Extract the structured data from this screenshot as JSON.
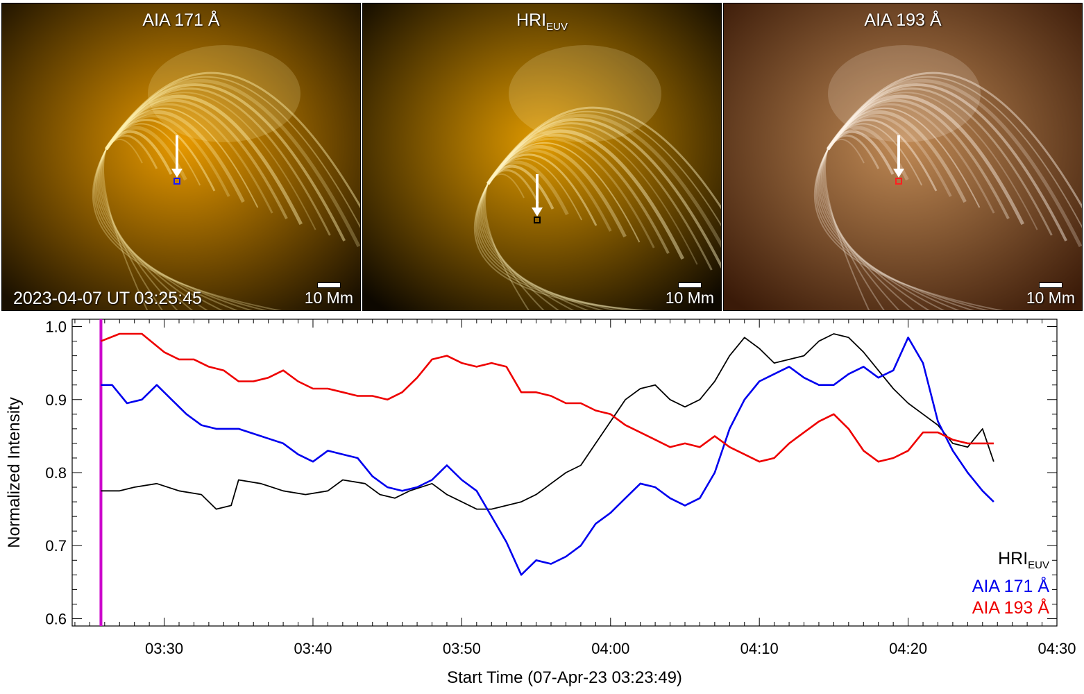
{
  "panels": [
    {
      "title": "AIA 171 Å",
      "scale_label": "10 Mm",
      "timestamp": "2023-04-07 UT 03:25:45",
      "box_color": "#1a1aff",
      "palette": [
        "#1a1000",
        "#e89a00",
        "#fff2b0"
      ]
    },
    {
      "title": "HRI",
      "title_sub": "EUV",
      "scale_label": "10 Mm",
      "box_color": "#000000",
      "palette": [
        "#0d0800",
        "#e09a00",
        "#fff4c0"
      ]
    },
    {
      "title": "AIA 193 Å",
      "scale_label": "10 Mm",
      "box_color": "#ff2020",
      "palette": [
        "#3a1a08",
        "#c08a55",
        "#fff5e8"
      ]
    }
  ],
  "legend": [
    {
      "label": "HRI",
      "sub": "EUV",
      "color": "#000000"
    },
    {
      "label": "AIA 171 Å",
      "sub": "",
      "color": "#0000ee"
    },
    {
      "label": "AIA 193 Å",
      "sub": "",
      "color": "#ee0000"
    }
  ],
  "chart_data": {
    "type": "line",
    "xlabel": "Start Time (07-Apr-23 03:23:49)",
    "ylabel": "Normalized Intensity",
    "xlim": [
      "03:23:49",
      "04:30:00"
    ],
    "ylim": [
      0.59,
      1.01
    ],
    "x_ticks": [
      "03:30",
      "03:40",
      "03:50",
      "04:00",
      "04:10",
      "04:20",
      "04:30"
    ],
    "y_ticks": [
      "0.6",
      "0.7",
      "0.8",
      "0.9",
      "1.0"
    ],
    "vertical_marker": {
      "time": "03:25:45",
      "color": "#cc00cc"
    },
    "series": [
      {
        "name": "HRI_EUV",
        "color": "#000000",
        "points": [
          [
            "03:25:45",
            0.775
          ],
          [
            "03:27:00",
            0.775
          ],
          [
            "03:28:00",
            0.78
          ],
          [
            "03:29:30",
            0.785
          ],
          [
            "03:31:00",
            0.775
          ],
          [
            "03:32:30",
            0.77
          ],
          [
            "03:33:30",
            0.75
          ],
          [
            "03:34:30",
            0.755
          ],
          [
            "03:35:00",
            0.79
          ],
          [
            "03:36:30",
            0.785
          ],
          [
            "03:38:00",
            0.775
          ],
          [
            "03:39:30",
            0.77
          ],
          [
            "03:41:00",
            0.775
          ],
          [
            "03:42:00",
            0.79
          ],
          [
            "03:43:30",
            0.785
          ],
          [
            "03:44:30",
            0.77
          ],
          [
            "03:45:30",
            0.765
          ],
          [
            "03:46:30",
            0.775
          ],
          [
            "03:48:00",
            0.785
          ],
          [
            "03:49:00",
            0.77
          ],
          [
            "03:50:00",
            0.76
          ],
          [
            "03:51:00",
            0.75
          ],
          [
            "03:52:00",
            0.75
          ],
          [
            "03:53:00",
            0.755
          ],
          [
            "03:54:00",
            0.76
          ],
          [
            "03:55:00",
            0.77
          ],
          [
            "03:56:00",
            0.785
          ],
          [
            "03:57:00",
            0.8
          ],
          [
            "03:58:00",
            0.81
          ],
          [
            "03:59:00",
            0.84
          ],
          [
            "04:00:00",
            0.87
          ],
          [
            "04:01:00",
            0.9
          ],
          [
            "04:02:00",
            0.915
          ],
          [
            "04:03:00",
            0.92
          ],
          [
            "04:04:00",
            0.9
          ],
          [
            "04:05:00",
            0.89
          ],
          [
            "04:06:00",
            0.9
          ],
          [
            "04:07:00",
            0.925
          ],
          [
            "04:08:00",
            0.96
          ],
          [
            "04:09:00",
            0.985
          ],
          [
            "04:10:00",
            0.97
          ],
          [
            "04:11:00",
            0.95
          ],
          [
            "04:12:00",
            0.955
          ],
          [
            "04:13:00",
            0.96
          ],
          [
            "04:14:00",
            0.98
          ],
          [
            "04:15:00",
            0.99
          ],
          [
            "04:16:00",
            0.985
          ],
          [
            "04:17:00",
            0.965
          ],
          [
            "04:18:00",
            0.94
          ],
          [
            "04:19:00",
            0.915
          ],
          [
            "04:20:00",
            0.895
          ],
          [
            "04:21:00",
            0.88
          ],
          [
            "04:22:00",
            0.865
          ],
          [
            "04:23:00",
            0.84
          ],
          [
            "04:24:00",
            0.835
          ],
          [
            "04:25:00",
            0.86
          ],
          [
            "04:25:45",
            0.815
          ]
        ]
      },
      {
        "name": "AIA 171 Å",
        "color": "#0000ee",
        "points": [
          [
            "03:25:45",
            0.92
          ],
          [
            "03:26:30",
            0.92
          ],
          [
            "03:27:30",
            0.895
          ],
          [
            "03:28:30",
            0.9
          ],
          [
            "03:29:30",
            0.92
          ],
          [
            "03:30:30",
            0.9
          ],
          [
            "03:31:30",
            0.88
          ],
          [
            "03:32:30",
            0.865
          ],
          [
            "03:33:30",
            0.86
          ],
          [
            "03:35:00",
            0.86
          ],
          [
            "03:36:30",
            0.85
          ],
          [
            "03:38:00",
            0.84
          ],
          [
            "03:39:00",
            0.825
          ],
          [
            "03:40:00",
            0.815
          ],
          [
            "03:41:00",
            0.83
          ],
          [
            "03:42:00",
            0.825
          ],
          [
            "03:43:00",
            0.82
          ],
          [
            "03:44:00",
            0.795
          ],
          [
            "03:45:00",
            0.78
          ],
          [
            "03:46:00",
            0.775
          ],
          [
            "03:47:00",
            0.78
          ],
          [
            "03:48:00",
            0.79
          ],
          [
            "03:49:00",
            0.81
          ],
          [
            "03:50:00",
            0.79
          ],
          [
            "03:51:00",
            0.775
          ],
          [
            "03:52:00",
            0.74
          ],
          [
            "03:53:00",
            0.705
          ],
          [
            "03:54:00",
            0.66
          ],
          [
            "03:55:00",
            0.68
          ],
          [
            "03:56:00",
            0.675
          ],
          [
            "03:57:00",
            0.685
          ],
          [
            "03:58:00",
            0.7
          ],
          [
            "03:59:00",
            0.73
          ],
          [
            "04:00:00",
            0.745
          ],
          [
            "04:01:00",
            0.765
          ],
          [
            "04:02:00",
            0.785
          ],
          [
            "04:03:00",
            0.78
          ],
          [
            "04:04:00",
            0.765
          ],
          [
            "04:05:00",
            0.755
          ],
          [
            "04:06:00",
            0.765
          ],
          [
            "04:07:00",
            0.8
          ],
          [
            "04:08:00",
            0.86
          ],
          [
            "04:09:00",
            0.9
          ],
          [
            "04:10:00",
            0.925
          ],
          [
            "04:11:00",
            0.935
          ],
          [
            "04:12:00",
            0.945
          ],
          [
            "04:13:00",
            0.93
          ],
          [
            "04:14:00",
            0.92
          ],
          [
            "04:15:00",
            0.92
          ],
          [
            "04:16:00",
            0.935
          ],
          [
            "04:17:00",
            0.945
          ],
          [
            "04:18:00",
            0.93
          ],
          [
            "04:19:00",
            0.94
          ],
          [
            "04:20:00",
            0.985
          ],
          [
            "04:21:00",
            0.95
          ],
          [
            "04:22:00",
            0.87
          ],
          [
            "04:23:00",
            0.83
          ],
          [
            "04:24:00",
            0.8
          ],
          [
            "04:25:00",
            0.775
          ],
          [
            "04:25:45",
            0.76
          ]
        ]
      },
      {
        "name": "AIA 193 Å",
        "color": "#ee0000",
        "points": [
          [
            "03:25:45",
            0.98
          ],
          [
            "03:27:00",
            0.99
          ],
          [
            "03:28:30",
            0.99
          ],
          [
            "03:30:00",
            0.965
          ],
          [
            "03:31:00",
            0.955
          ],
          [
            "03:32:00",
            0.955
          ],
          [
            "03:33:00",
            0.945
          ],
          [
            "03:34:00",
            0.94
          ],
          [
            "03:35:00",
            0.925
          ],
          [
            "03:36:00",
            0.925
          ],
          [
            "03:37:00",
            0.93
          ],
          [
            "03:38:00",
            0.94
          ],
          [
            "03:39:00",
            0.925
          ],
          [
            "03:40:00",
            0.915
          ],
          [
            "03:41:00",
            0.915
          ],
          [
            "03:42:00",
            0.91
          ],
          [
            "03:43:00",
            0.905
          ],
          [
            "03:44:00",
            0.905
          ],
          [
            "03:45:00",
            0.9
          ],
          [
            "03:46:00",
            0.91
          ],
          [
            "03:47:00",
            0.93
          ],
          [
            "03:48:00",
            0.955
          ],
          [
            "03:49:00",
            0.96
          ],
          [
            "03:50:00",
            0.95
          ],
          [
            "03:51:00",
            0.945
          ],
          [
            "03:52:00",
            0.95
          ],
          [
            "03:53:00",
            0.945
          ],
          [
            "03:54:00",
            0.91
          ],
          [
            "03:55:00",
            0.91
          ],
          [
            "03:56:00",
            0.905
          ],
          [
            "03:57:00",
            0.895
          ],
          [
            "03:58:00",
            0.895
          ],
          [
            "03:59:00",
            0.885
          ],
          [
            "04:00:00",
            0.88
          ],
          [
            "04:01:00",
            0.865
          ],
          [
            "04:02:00",
            0.855
          ],
          [
            "04:03:00",
            0.845
          ],
          [
            "04:04:00",
            0.835
          ],
          [
            "04:05:00",
            0.84
          ],
          [
            "04:06:00",
            0.835
          ],
          [
            "04:07:00",
            0.85
          ],
          [
            "04:08:00",
            0.835
          ],
          [
            "04:09:00",
            0.825
          ],
          [
            "04:10:00",
            0.815
          ],
          [
            "04:11:00",
            0.82
          ],
          [
            "04:12:00",
            0.84
          ],
          [
            "04:13:00",
            0.855
          ],
          [
            "04:14:00",
            0.87
          ],
          [
            "04:15:00",
            0.88
          ],
          [
            "04:16:00",
            0.86
          ],
          [
            "04:17:00",
            0.83
          ],
          [
            "04:18:00",
            0.815
          ],
          [
            "04:19:00",
            0.82
          ],
          [
            "04:20:00",
            0.83
          ],
          [
            "04:21:00",
            0.855
          ],
          [
            "04:22:00",
            0.855
          ],
          [
            "04:23:00",
            0.845
          ],
          [
            "04:24:00",
            0.84
          ],
          [
            "04:25:00",
            0.84
          ],
          [
            "04:25:45",
            0.84
          ]
        ]
      }
    ]
  }
}
